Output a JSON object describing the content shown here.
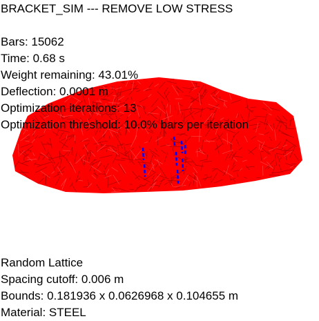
{
  "hud": {
    "title": "BRACKET_SIM --- REMOVE LOW STRESS",
    "bars": "Bars: 15062",
    "time": "Time: 0.68 s",
    "weight_remaining": "Weight remaining: 43.01%",
    "deflection": "Deflection: 0.0001 m",
    "optimization_iterations": "Optimization iterations: 13",
    "optimization_threshold": "Optimization threshold: 10.0% bars per iteration"
  },
  "info": {
    "lattice_type": "Random Lattice",
    "spacing_cutoff": "Spacing cutoff: 0.006 m",
    "bounds": "Bounds: 0.181936 x 0.0626968 x 0.104655 m",
    "material": "Material: STEEL"
  },
  "colors": {
    "background": "#ffffff",
    "lattice_bars": "#ff0000",
    "lattice_dark": "#b40000",
    "constraint_markers": "#0000ff",
    "text": "#000000"
  }
}
